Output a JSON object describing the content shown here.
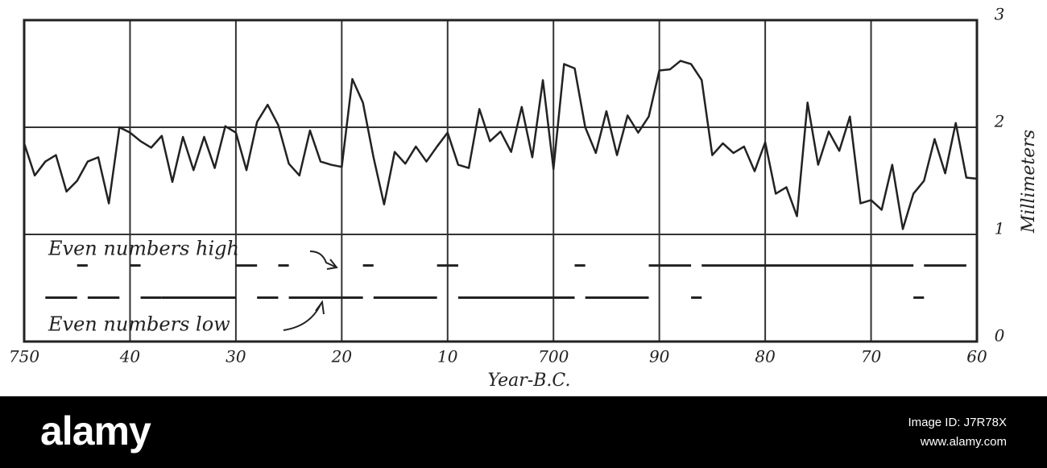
{
  "chart_data": {
    "type": "line",
    "x_label": "Year-B.C.",
    "y_label": "Millimeters",
    "xlim": [
      750,
      660
    ],
    "ylim": [
      0,
      3
    ],
    "xticks": [
      750,
      {
        "value": 740,
        "label": "40"
      },
      {
        "value": 730,
        "label": "30"
      },
      {
        "value": 720,
        "label": "20"
      },
      {
        "value": 710,
        "label": "10"
      },
      700,
      {
        "value": 690,
        "label": "90"
      },
      {
        "value": 680,
        "label": "80"
      },
      {
        "value": 670,
        "label": "70"
      },
      {
        "value": 660,
        "label": "60"
      }
    ],
    "yticks": [
      0,
      1,
      2,
      3
    ],
    "grid": true,
    "color": "#222222",
    "x": [
      750,
      749,
      748,
      747,
      746,
      745,
      744,
      743,
      742,
      741,
      740,
      739,
      738,
      737,
      736,
      735,
      734,
      733,
      732,
      731,
      730,
      729,
      728,
      727,
      726,
      725,
      724,
      723,
      722,
      721,
      720,
      719,
      718,
      717,
      716,
      715,
      714,
      713,
      712,
      711,
      710,
      709,
      708,
      707,
      706,
      705,
      704,
      703,
      702,
      701,
      700,
      699,
      698,
      697,
      696,
      695,
      694,
      693,
      692,
      691,
      690,
      689,
      688,
      687,
      686,
      685,
      684,
      683,
      682,
      681,
      680,
      679,
      678,
      677,
      676,
      675,
      674,
      673,
      672,
      671,
      670,
      669,
      668,
      667,
      666,
      665,
      664,
      663,
      662,
      661,
      660
    ],
    "values": [
      1.85,
      1.55,
      1.68,
      1.74,
      1.4,
      1.5,
      1.68,
      1.72,
      1.29,
      2.0,
      1.95,
      1.87,
      1.81,
      1.92,
      1.49,
      1.91,
      1.6,
      1.91,
      1.62,
      2.01,
      1.95,
      1.6,
      2.05,
      2.21,
      2.02,
      1.66,
      1.55,
      1.97,
      1.68,
      1.65,
      1.63,
      2.45,
      2.23,
      1.72,
      1.28,
      1.77,
      1.66,
      1.82,
      1.68,
      1.82,
      1.95,
      1.65,
      1.62,
      2.17,
      1.87,
      1.96,
      1.77,
      2.19,
      1.72,
      2.44,
      1.61,
      2.59,
      2.55,
      2.0,
      1.76,
      2.15,
      1.74,
      2.11,
      1.95,
      2.1,
      2.53,
      2.54,
      2.62,
      2.59,
      2.44,
      1.74,
      1.85,
      1.76,
      1.82,
      1.59,
      1.86,
      1.38,
      1.44,
      1.17,
      2.23,
      1.65,
      1.96,
      1.78,
      2.1,
      1.29,
      1.32,
      1.23,
      1.65,
      1.05,
      1.38,
      1.5,
      1.89,
      1.57,
      2.04,
      1.53,
      1.52
    ],
    "annotations": [
      {
        "text": "Even numbers high",
        "periods": [
          [
            745,
            744
          ],
          [
            740,
            739
          ],
          [
            730,
            728
          ],
          [
            726,
            725
          ],
          [
            718,
            717
          ],
          [
            711,
            709
          ],
          [
            698,
            697
          ],
          [
            691,
            687
          ],
          [
            686,
            666
          ],
          [
            665,
            661
          ]
        ]
      },
      {
        "text": "Even numbers low",
        "periods": [
          [
            748,
            745
          ],
          [
            744,
            741
          ],
          [
            739,
            737
          ],
          [
            737,
            730
          ],
          [
            728,
            726
          ],
          [
            725,
            718
          ],
          [
            717,
            711
          ],
          [
            709,
            698
          ],
          [
            697,
            691
          ],
          [
            687,
            686
          ],
          [
            666,
            665
          ]
        ]
      }
    ]
  },
  "watermark": {
    "logo": "alamy",
    "image_id": "Image ID: J7R78X",
    "url": "www.alamy.com"
  }
}
